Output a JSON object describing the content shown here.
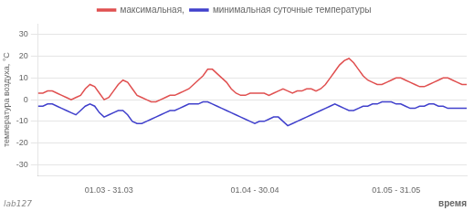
{
  "chart_data": {
    "type": "line",
    "xlabel": "время",
    "ylabel": "температура воздуха, °С",
    "annotations": [
      "lab127"
    ],
    "categories": [
      null,
      null,
      null,
      null,
      null,
      null,
      null,
      null,
      null,
      null,
      null,
      null,
      null,
      null,
      null,
      "01.03 - 31.03",
      null,
      null,
      null,
      null,
      null,
      null,
      null,
      null,
      null,
      null,
      null,
      null,
      null,
      null,
      null,
      null,
      null,
      null,
      null,
      null,
      null,
      null,
      null,
      null,
      null,
      null,
      null,
      null,
      null,
      null,
      "01.04 - 30.04",
      null,
      null,
      null,
      null,
      null,
      null,
      null,
      null,
      null,
      null,
      null,
      null,
      null,
      null,
      null,
      null,
      null,
      null,
      null,
      null,
      null,
      null,
      null,
      null,
      null,
      null,
      null,
      null,
      null,
      "01.05 - 31.05",
      null,
      null,
      null,
      null,
      null,
      null,
      null,
      null,
      null,
      null,
      null,
      null,
      null,
      null,
      null
    ],
    "series": [
      {
        "name": "максимальная,",
        "color": "#e05050",
        "values": [
          3,
          3,
          4,
          4,
          3,
          2,
          1,
          0,
          1,
          2,
          5,
          7,
          6,
          3,
          0,
          1,
          4,
          7,
          9,
          8,
          5,
          2,
          1,
          0,
          -1,
          -1,
          0,
          1,
          2,
          2,
          3,
          4,
          5,
          7,
          9,
          11,
          14,
          14,
          12,
          10,
          8,
          5,
          3,
          2,
          2,
          3,
          3,
          3,
          3,
          2,
          3,
          4,
          5,
          4,
          3,
          4,
          4,
          5,
          5,
          4,
          5,
          7,
          10,
          13,
          16,
          18,
          19,
          17,
          14,
          11,
          9,
          8,
          7,
          7,
          8,
          9,
          10,
          10,
          9,
          8,
          7,
          6,
          6,
          7,
          8,
          9,
          10,
          10,
          9,
          8,
          7,
          7
        ]
      },
      {
        "name": "минимальная суточные температуры",
        "color": "#4040cc",
        "values": [
          -3,
          -3,
          -2,
          -2,
          -3,
          -4,
          -5,
          -6,
          -7,
          -5,
          -3,
          -2,
          -3,
          -6,
          -8,
          -7,
          -6,
          -5,
          -5,
          -7,
          -10,
          -11,
          -11,
          -10,
          -9,
          -8,
          -7,
          -6,
          -5,
          -5,
          -4,
          -3,
          -2,
          -2,
          -2,
          -1,
          -1,
          -2,
          -3,
          -4,
          -5,
          -6,
          -7,
          -8,
          -9,
          -10,
          -11,
          -10,
          -10,
          -9,
          -8,
          -8,
          -10,
          -12,
          -11,
          -10,
          -9,
          -8,
          -7,
          -6,
          -5,
          -4,
          -3,
          -2,
          -3,
          -4,
          -5,
          -5,
          -4,
          -3,
          -3,
          -2,
          -2,
          -1,
          -1,
          -1,
          -2,
          -2,
          -3,
          -4,
          -4,
          -3,
          -3,
          -2,
          -2,
          -3,
          -3,
          -4,
          -4,
          -4,
          -4,
          -4
        ]
      }
    ],
    "ylim": [
      -35,
      35
    ],
    "yticks": [
      -30,
      -20,
      -10,
      0,
      10,
      20,
      30
    ],
    "grid": true,
    "legend": "top"
  }
}
